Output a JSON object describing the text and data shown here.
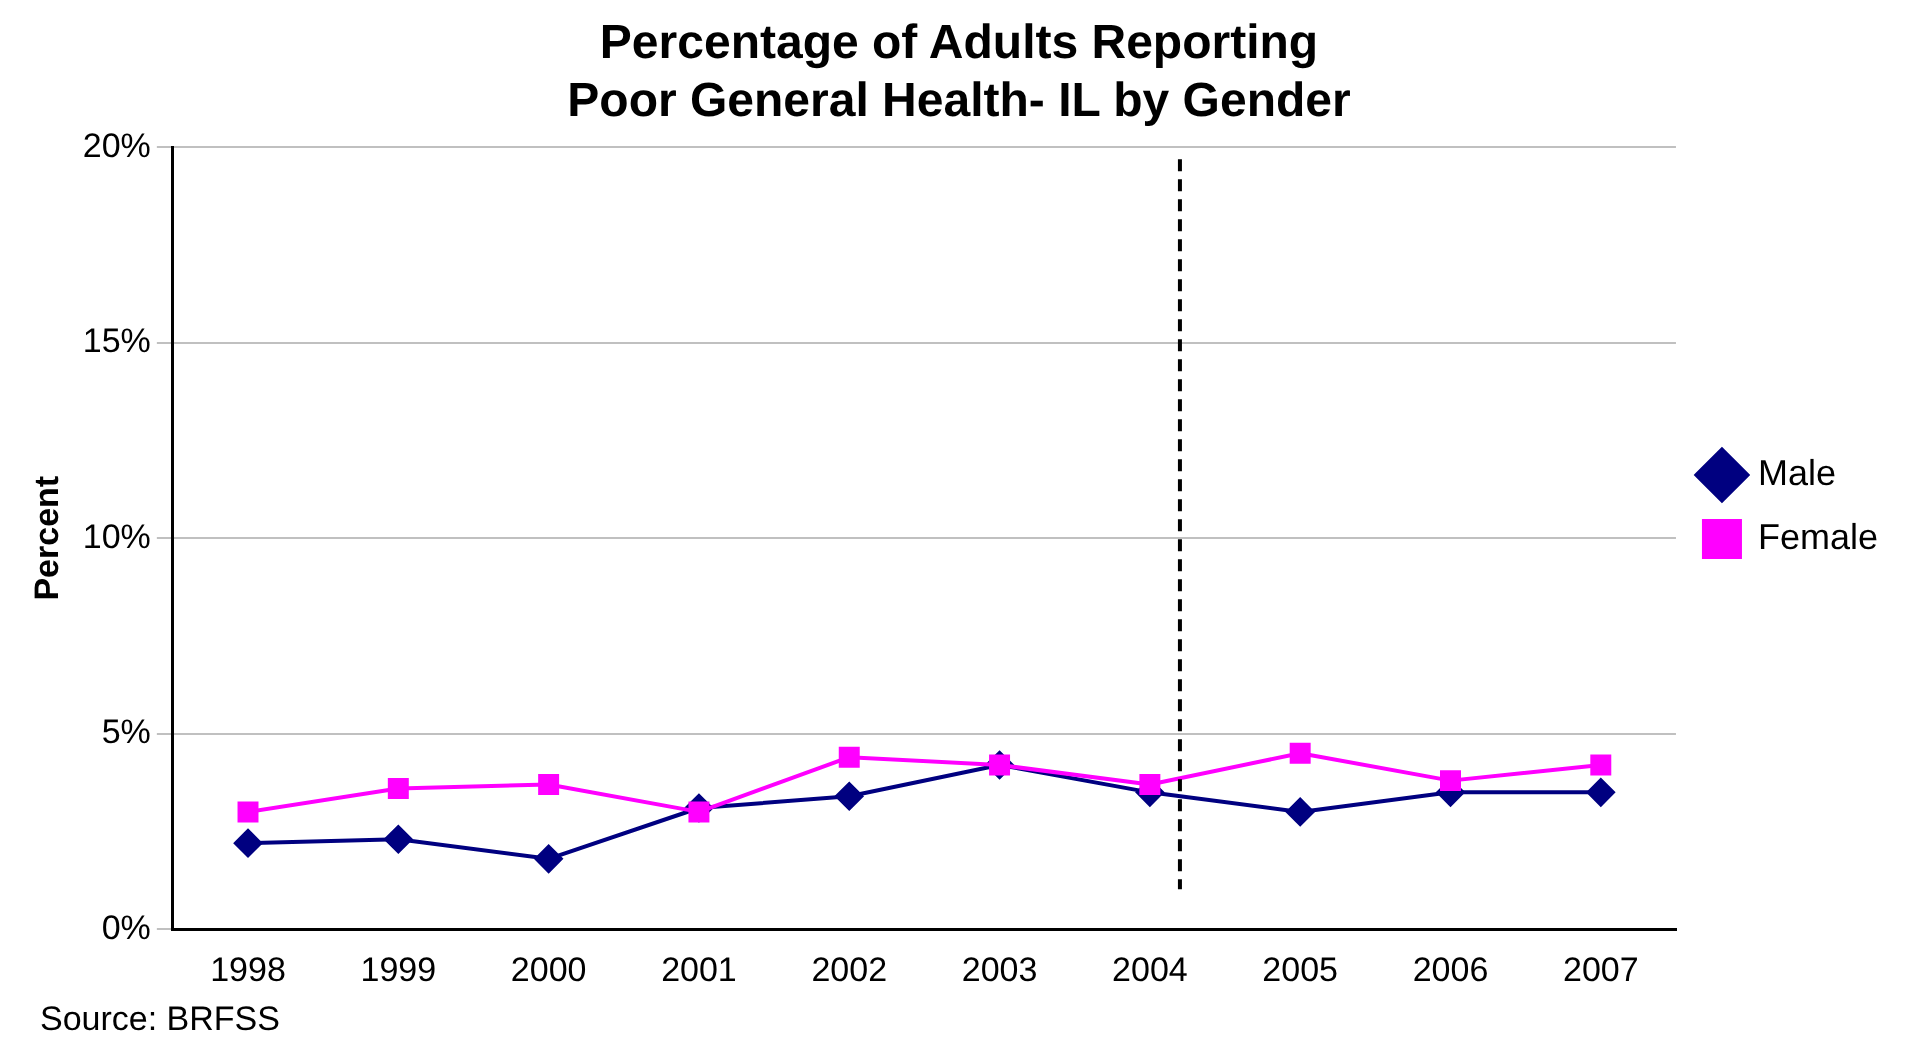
{
  "chart_data": {
    "type": "line",
    "title": [
      "Percentage of Adults Reporting",
      "Poor General Health- IL by Gender"
    ],
    "ylabel": "Percent",
    "x": [
      1998,
      1999,
      2000,
      2001,
      2002,
      2003,
      2004,
      2005,
      2006,
      2007
    ],
    "xlim": [
      1997.5,
      2007.5
    ],
    "xticks": [
      1998,
      1999,
      2000,
      2001,
      2002,
      2003,
      2004,
      2005,
      2006,
      2007
    ],
    "ylim": [
      0,
      20
    ],
    "yticks": [
      {
        "value": 0,
        "label": "0%"
      },
      {
        "value": 5,
        "label": "5%"
      },
      {
        "value": 10,
        "label": "10%"
      },
      {
        "value": 15,
        "label": "15%"
      },
      {
        "value": 20,
        "label": "20%"
      }
    ],
    "series": [
      {
        "name": "Male",
        "color": "#000080",
        "marker": "diamond",
        "values": [
          2.2,
          2.3,
          1.8,
          3.1,
          3.4,
          4.2,
          3.5,
          3.0,
          3.5,
          3.5
        ]
      },
      {
        "name": "Female",
        "color": "#ff00ff",
        "marker": "square",
        "values": [
          3.0,
          3.6,
          3.7,
          3.0,
          4.4,
          4.2,
          3.7,
          4.5,
          3.8,
          4.2
        ]
      }
    ],
    "ref_lines": [
      {
        "axis": "x",
        "value": 2004.2,
        "color": "#000000",
        "line_style": "dashed"
      }
    ],
    "grid": "y",
    "legend": "right",
    "line_style": "solid",
    "annotations": [
      "Source: BRFSS"
    ]
  }
}
